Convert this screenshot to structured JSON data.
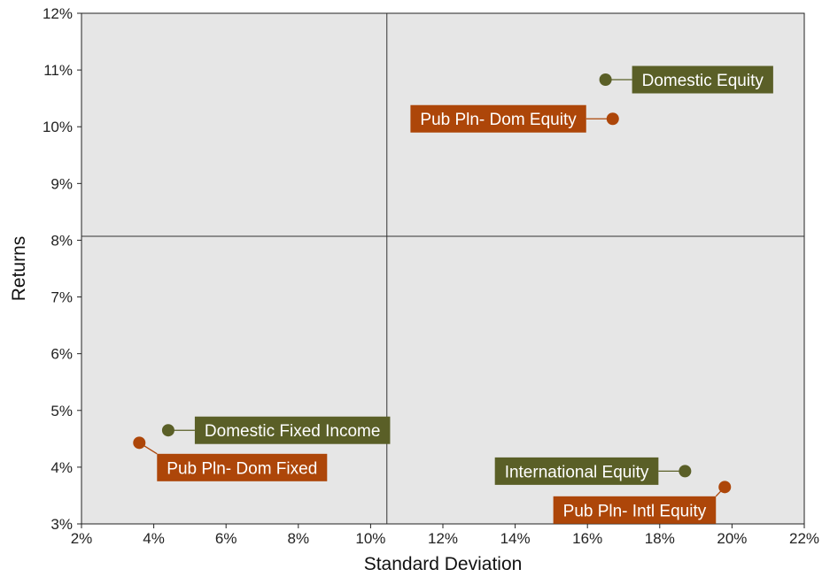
{
  "chart_data": {
    "type": "scatter",
    "title": "",
    "xlabel": "Standard Deviation",
    "ylabel": "Returns",
    "xlim": [
      2,
      22
    ],
    "ylim": [
      3,
      12
    ],
    "x_ticks": [
      "2%",
      "4%",
      "6%",
      "8%",
      "10%",
      "12%",
      "14%",
      "16%",
      "18%",
      "20%",
      "22%"
    ],
    "y_ticks": [
      "3%",
      "4%",
      "5%",
      "6%",
      "7%",
      "8%",
      "9%",
      "10%",
      "11%",
      "12%"
    ],
    "background": "#e6e6e6",
    "grid": false,
    "reference_lines": {
      "x": 10.45,
      "y": 8.07
    },
    "colors": {
      "benchmark": "#5a5f27",
      "public_plan": "#ad4609"
    },
    "points": [
      {
        "label": "Domestic Equity",
        "x": 16.5,
        "y": 10.83,
        "group": "benchmark"
      },
      {
        "label": "Pub Pln- Dom Equity",
        "x": 16.7,
        "y": 10.14,
        "group": "public_plan"
      },
      {
        "label": "Domestic Fixed Income",
        "x": 4.4,
        "y": 4.65,
        "group": "benchmark"
      },
      {
        "label": "Pub Pln- Dom Fixed",
        "x": 3.6,
        "y": 4.43,
        "group": "public_plan"
      },
      {
        "label": "International Equity",
        "x": 18.7,
        "y": 3.93,
        "group": "benchmark"
      },
      {
        "label": "Pub Pln- Intl Equity",
        "x": 19.8,
        "y": 3.65,
        "group": "public_plan"
      }
    ]
  }
}
